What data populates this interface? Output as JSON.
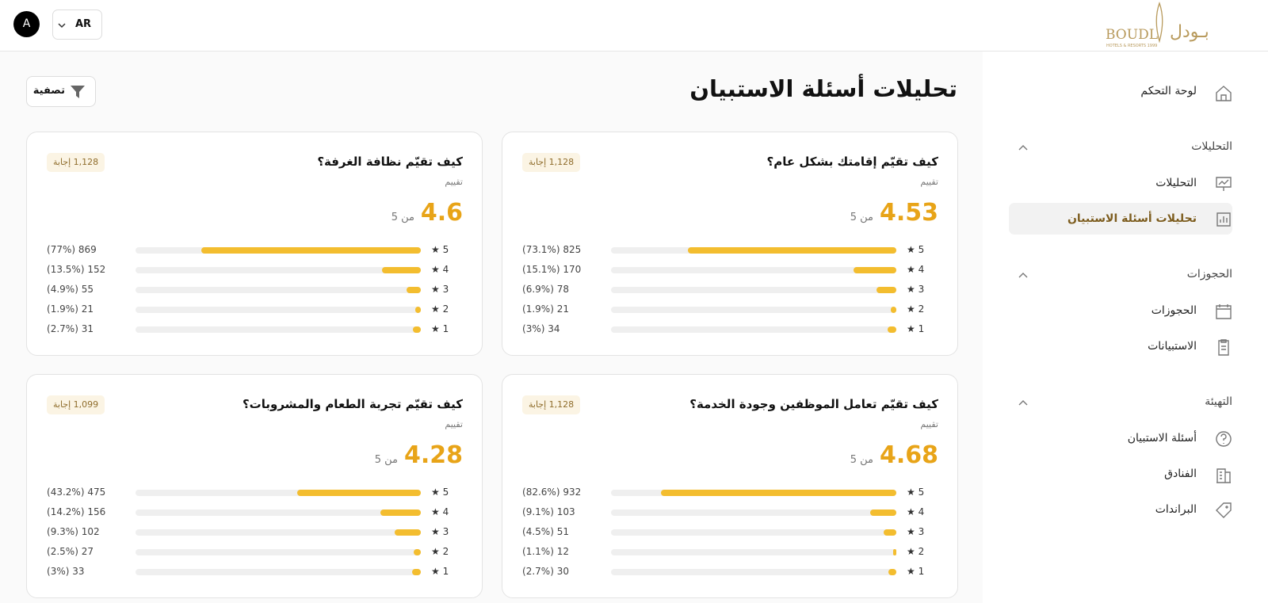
{
  "header": {
    "avatar": "A",
    "language": "AR",
    "logo": {
      "latin": "BOUDL",
      "arabic": "بـودل",
      "tagline": "HOTELS & RESORTS 1999"
    }
  },
  "sidebar": {
    "dashboard": "لوحة التحكم",
    "sections": [
      {
        "title": "التحليلات",
        "items": [
          "التحليلات",
          "تحليلات أسئلة الاستبيان"
        ]
      },
      {
        "title": "الحجوزات",
        "items": [
          "الحجوزات",
          "الاستبيانات"
        ]
      },
      {
        "title": "التهيئة",
        "items": [
          "أسئلة الاستبيان",
          "الفنادق",
          "البراندات"
        ]
      }
    ]
  },
  "main": {
    "title": "تحليلات أسئلة الاستبيان",
    "filter": "تصفية",
    "cards": [
      {
        "question": "كيف تقيّم إقامتك بشكل عام؟",
        "responses": "1,128 إجابة",
        "score_label": "تقييم",
        "score": 4.53,
        "out_of": "من 5",
        "rows": [
          {
            "stars": "5 ★",
            "percent": 73.1,
            "label": "825 (73.1%)"
          },
          {
            "stars": "4 ★",
            "percent": 15.1,
            "label": "170 (15.1%)"
          },
          {
            "stars": "3 ★",
            "percent": 6.9,
            "label": "78 (6.9%)"
          },
          {
            "stars": "2 ★",
            "percent": 1.9,
            "label": "21 (1.9%)"
          },
          {
            "stars": "1 ★",
            "percent": 3,
            "label": "34 (3%)"
          }
        ]
      },
      {
        "question": "كيف تقيّم نظافة الغرفة؟",
        "responses": "1,128 إجابة",
        "score_label": "تقييم",
        "score": 4.6,
        "out_of": "من 5",
        "rows": [
          {
            "stars": "5 ★",
            "percent": 77,
            "label": "869 (77%)"
          },
          {
            "stars": "4 ★",
            "percent": 13.5,
            "label": "152 (13.5%)"
          },
          {
            "stars": "3 ★",
            "percent": 4.9,
            "label": "55 (4.9%)"
          },
          {
            "stars": "2 ★",
            "percent": 1.9,
            "label": "21 (1.9%)"
          },
          {
            "stars": "1 ★",
            "percent": 2.7,
            "label": "31 (2.7%)"
          }
        ]
      },
      {
        "question": "كيف تقيّم تعامل الموظفين وجودة الخدمة؟",
        "responses": "1,128 إجابة",
        "score_label": "تقييم",
        "score": 4.68,
        "out_of": "من 5",
        "rows": [
          {
            "stars": "5 ★",
            "percent": 82.6,
            "label": "932 (82.6%)"
          },
          {
            "stars": "4 ★",
            "percent": 9.1,
            "label": "103 (9.1%)"
          },
          {
            "stars": "3 ★",
            "percent": 4.5,
            "label": "51 (4.5%)"
          },
          {
            "stars": "2 ★",
            "percent": 1.1,
            "label": "12 (1.1%)"
          },
          {
            "stars": "1 ★",
            "percent": 2.7,
            "label": "30 (2.7%)"
          }
        ]
      },
      {
        "question": "كيف تقيّم تجربة الطعام والمشروبات؟",
        "responses": "1,099 إجابة",
        "score_label": "تقييم",
        "score": 4.28,
        "out_of": "من 5",
        "rows": [
          {
            "stars": "5 ★",
            "percent": 43.2,
            "label": "475 (43.2%)"
          },
          {
            "stars": "4 ★",
            "percent": 14.2,
            "label": "156 (14.2%)"
          },
          {
            "stars": "3 ★",
            "percent": 9.3,
            "label": "102 (9.3%)"
          },
          {
            "stars": "2 ★",
            "percent": 2.5,
            "label": "27 (2.5%)"
          },
          {
            "stars": "1 ★",
            "percent": 3,
            "label": "33 (3%)"
          }
        ]
      }
    ]
  }
}
